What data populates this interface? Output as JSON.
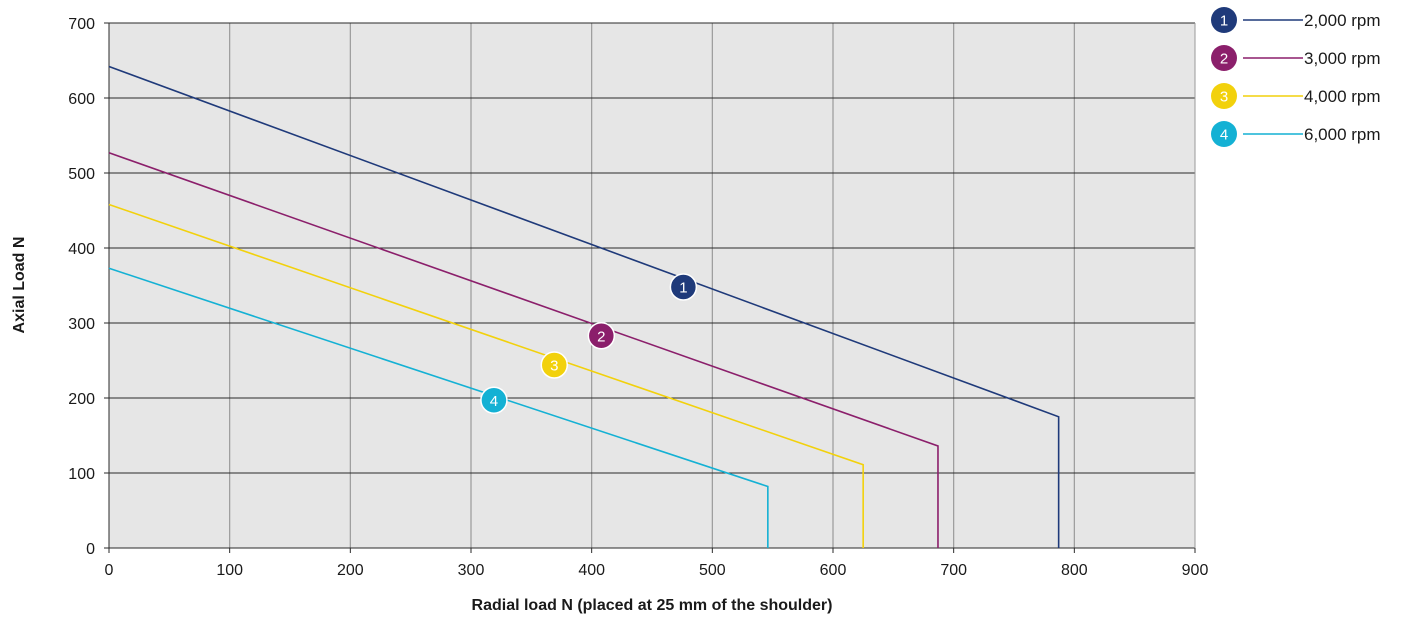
{
  "chart_data": {
    "type": "line",
    "title": "",
    "xlabel": "Radial load N (placed at 25 mm of the shoulder)",
    "ylabel": "Axial Load N",
    "xlim": [
      0,
      900
    ],
    "ylim": [
      0,
      700
    ],
    "xticks": [
      "0",
      "100",
      "200",
      "300",
      "400",
      "500",
      "600",
      "700",
      "800",
      "900"
    ],
    "yticks": [
      "0",
      "100",
      "200",
      "300",
      "400",
      "500",
      "600",
      "700"
    ],
    "grid": true,
    "legend_position": "top-right",
    "series": [
      {
        "id": "1",
        "name": "2,000 rpm",
        "color": "#1f3a7a",
        "points": [
          [
            0,
            642
          ],
          [
            787,
            175
          ],
          [
            787,
            0
          ]
        ],
        "marker": [
          476,
          348
        ]
      },
      {
        "id": "2",
        "name": "3,000 rpm",
        "color": "#8b1f6b",
        "points": [
          [
            0,
            527
          ],
          [
            687,
            136
          ],
          [
            687,
            0
          ]
        ],
        "marker": [
          408,
          283
        ]
      },
      {
        "id": "3",
        "name": "4,000 rpm",
        "color": "#f2d10c",
        "points": [
          [
            0,
            458
          ],
          [
            625,
            111
          ],
          [
            625,
            0
          ]
        ],
        "marker": [
          369,
          244
        ]
      },
      {
        "id": "4",
        "name": "6,000 rpm",
        "color": "#14b1d4",
        "points": [
          [
            0,
            373
          ],
          [
            546,
            82
          ],
          [
            546,
            0
          ]
        ],
        "marker": [
          319,
          197
        ]
      }
    ]
  }
}
